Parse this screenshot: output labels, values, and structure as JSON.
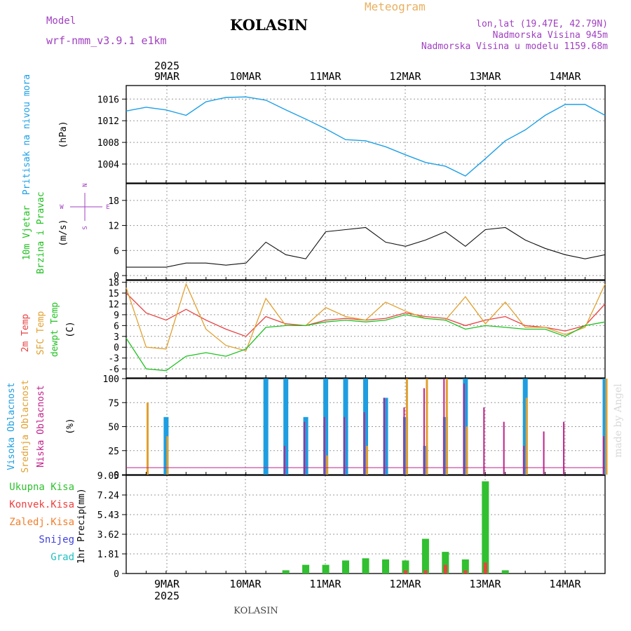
{
  "header": {
    "model_label": "Model",
    "model_name": "wrf-nmm_v3.9.1 e1km",
    "station": "KOLASIN",
    "title": "Meteogram",
    "coords": "lon,lat (19.47E, 42.79N)",
    "elevation": "Nadmorska Visina 945m",
    "model_elevation": "Nadmorska Visina u modelu 1159.68m",
    "footer_station": "KOLASIN",
    "credit": "made by Angel"
  },
  "colors": {
    "pressure": "#1ea0e6",
    "temp2m": "#e84040",
    "sfc_temp": "#e0a030",
    "dewpoint": "#20c020",
    "high_cloud": "#1e9ee0",
    "mid_cloud": "#e0a030",
    "low_cloud": "#c0208a",
    "total_precip": "#30c030",
    "conv_precip": "#ee4040",
    "frz_precip": "#f08030",
    "snow": "#4040e0",
    "hail": "#20c0c0",
    "magenta_text": "#a040c0",
    "gold_text": "#e8b060"
  },
  "chart_data": [
    {
      "type": "line",
      "panel": "pressure",
      "ylabel": "Pritisak na nivou mora",
      "unit": "(hPa)",
      "yticks": [
        1004,
        1008,
        1012,
        1016
      ],
      "ylim": [
        1000.5,
        1018.5
      ],
      "x_hours": [
        0,
        6,
        12,
        18,
        24,
        30,
        36,
        42,
        48,
        54,
        60,
        66,
        72,
        78,
        84,
        90,
        96,
        102,
        108,
        114,
        120,
        126,
        132,
        138,
        144
      ],
      "values": [
        1013.8,
        1014.5,
        1014.0,
        1013.0,
        1015.5,
        1016.3,
        1016.4,
        1015.8,
        1014.0,
        1012.3,
        1010.5,
        1008.5,
        1008.3,
        1007.2,
        1005.7,
        1004.3,
        1003.6,
        1001.8,
        1005.0,
        1008.3,
        1010.3,
        1013.0,
        1015.0,
        1015.0,
        1013.0
      ]
    },
    {
      "type": "line",
      "panel": "wind",
      "ylabel": "10m Vjetar",
      "ylabel2": "Brzina i Pravac",
      "unit": "(m/s)",
      "compass": {
        "n": "N",
        "e": "E",
        "w": "W",
        "s": "S"
      },
      "yticks": [
        0,
        6,
        12,
        18
      ],
      "ylim": [
        -1,
        22
      ],
      "x_hours": [
        0,
        6,
        12,
        18,
        24,
        30,
        36,
        42,
        48,
        54,
        60,
        66,
        72,
        78,
        84,
        90,
        96,
        102,
        108,
        114,
        120,
        126,
        132,
        138,
        144
      ],
      "values": [
        2.0,
        2.0,
        2.0,
        3.0,
        3.0,
        2.5,
        3.0,
        8.0,
        5.0,
        4.0,
        10.5,
        11.0,
        11.5,
        8.0,
        7.0,
        8.5,
        10.5,
        7.0,
        11.0,
        11.5,
        8.5,
        6.5,
        5.0,
        4.0,
        5.0
      ]
    },
    {
      "type": "line",
      "panel": "temperature",
      "ylabel": "2m Temp",
      "ylabel2": "SFC Temp",
      "ylabel3": "dewpt Temp",
      "unit": "(C)",
      "yticks": [
        -6,
        -3,
        0,
        3,
        6,
        9,
        12,
        15,
        18
      ],
      "ylim": [
        -8.5,
        18.5
      ],
      "x_hours": [
        0,
        6,
        12,
        18,
        24,
        30,
        36,
        42,
        48,
        54,
        60,
        66,
        72,
        78,
        84,
        90,
        96,
        102,
        108,
        114,
        120,
        126,
        132,
        138,
        144
      ],
      "series": [
        {
          "name": "2m Temp",
          "values": [
            15.0,
            9.5,
            7.5,
            10.5,
            7.5,
            5.0,
            3.0,
            8.5,
            6.5,
            6.0,
            7.5,
            8.0,
            7.5,
            8.0,
            9.5,
            8.5,
            8.0,
            6.0,
            7.5,
            8.5,
            6.0,
            5.5,
            4.5,
            6.0,
            12.0
          ]
        },
        {
          "name": "SFC Temp",
          "values": [
            16.5,
            0.0,
            -0.5,
            17.5,
            5.0,
            0.5,
            -1.0,
            13.5,
            6.0,
            6.0,
            11.0,
            8.5,
            7.5,
            12.5,
            10.0,
            8.0,
            7.5,
            14.0,
            6.5,
            12.5,
            5.5,
            5.5,
            3.5,
            5.5,
            17.5
          ]
        },
        {
          "name": "dewpt Temp",
          "values": [
            2.5,
            -6.0,
            -6.5,
            -2.5,
            -1.5,
            -2.5,
            -0.5,
            5.5,
            6.0,
            6.0,
            7.0,
            7.5,
            7.0,
            7.5,
            9.0,
            8.0,
            7.5,
            5.0,
            6.0,
            5.5,
            5.0,
            5.0,
            3.0,
            6.0,
            7.0
          ]
        }
      ]
    },
    {
      "type": "bar",
      "panel": "cloud",
      "ylabel": "Visoka Oblacnost",
      "ylabel2": "Srednja Oblacnost",
      "ylabel3": "Niska Oblacnost",
      "unit": "(%)",
      "yticks": [
        0,
        25,
        50,
        75,
        100
      ],
      "ylim": [
        0,
        100
      ],
      "x_hours": [
        0,
        6,
        12,
        18,
        24,
        30,
        36,
        42,
        48,
        54,
        60,
        66,
        72,
        78,
        84,
        90,
        96,
        102,
        108,
        114,
        120,
        126,
        132,
        138,
        144
      ],
      "series": [
        {
          "name": "Visoka Oblacnost",
          "values": [
            0,
            0,
            60,
            0,
            0,
            0,
            0,
            100,
            100,
            60,
            100,
            100,
            100,
            80,
            60,
            30,
            60,
            100,
            0,
            0,
            100,
            0,
            0,
            0,
            100
          ]
        },
        {
          "name": "Srednja Oblacnost",
          "values": [
            0,
            75,
            40,
            0,
            0,
            0,
            0,
            0,
            0,
            0,
            20,
            0,
            30,
            0,
            100,
            100,
            100,
            50,
            0,
            0,
            80,
            0,
            0,
            0,
            100
          ]
        },
        {
          "name": "Niska Oblacnost",
          "values": [
            0,
            0,
            0,
            0,
            0,
            0,
            0,
            0,
            30,
            55,
            60,
            60,
            65,
            80,
            70,
            90,
            100,
            95,
            70,
            55,
            30,
            45,
            55,
            5,
            40
          ]
        }
      ]
    },
    {
      "type": "bar",
      "panel": "precipitation",
      "ylabel": "1hr Precip",
      "unit": "(mm)",
      "legend": [
        "Ukupna Kisa",
        "Konvek.Kisa",
        "Zaledj.Kisa",
        "Snijeg",
        "Grad"
      ],
      "yticks": [
        0,
        1.81,
        3.62,
        5.43,
        7.24,
        9.05
      ],
      "ylim": [
        0,
        9.05
      ],
      "x_hours": [
        0,
        6,
        12,
        18,
        24,
        30,
        36,
        42,
        48,
        54,
        60,
        66,
        72,
        78,
        84,
        90,
        96,
        102,
        108,
        114,
        120,
        126,
        132,
        138,
        144
      ],
      "series": [
        {
          "name": "Ukupna Kisa",
          "values": [
            0,
            0,
            0,
            0,
            0,
            0,
            0,
            0,
            0.3,
            0.8,
            0.8,
            1.2,
            1.4,
            1.3,
            1.2,
            3.2,
            2.0,
            1.3,
            8.5,
            0.3,
            0,
            0,
            0,
            0,
            0
          ]
        },
        {
          "name": "Konvek.Kisa",
          "values": [
            0,
            0,
            0,
            0,
            0,
            0,
            0,
            0,
            0,
            0,
            0,
            0,
            0,
            0,
            0.3,
            0.3,
            0.8,
            0.3,
            1.0,
            0,
            0,
            0,
            0,
            0,
            0
          ]
        }
      ]
    }
  ],
  "x_axis": {
    "year": "2025",
    "day_labels": [
      "9MAR",
      "10MAR",
      "11MAR",
      "12MAR",
      "13MAR",
      "14MAR"
    ]
  }
}
